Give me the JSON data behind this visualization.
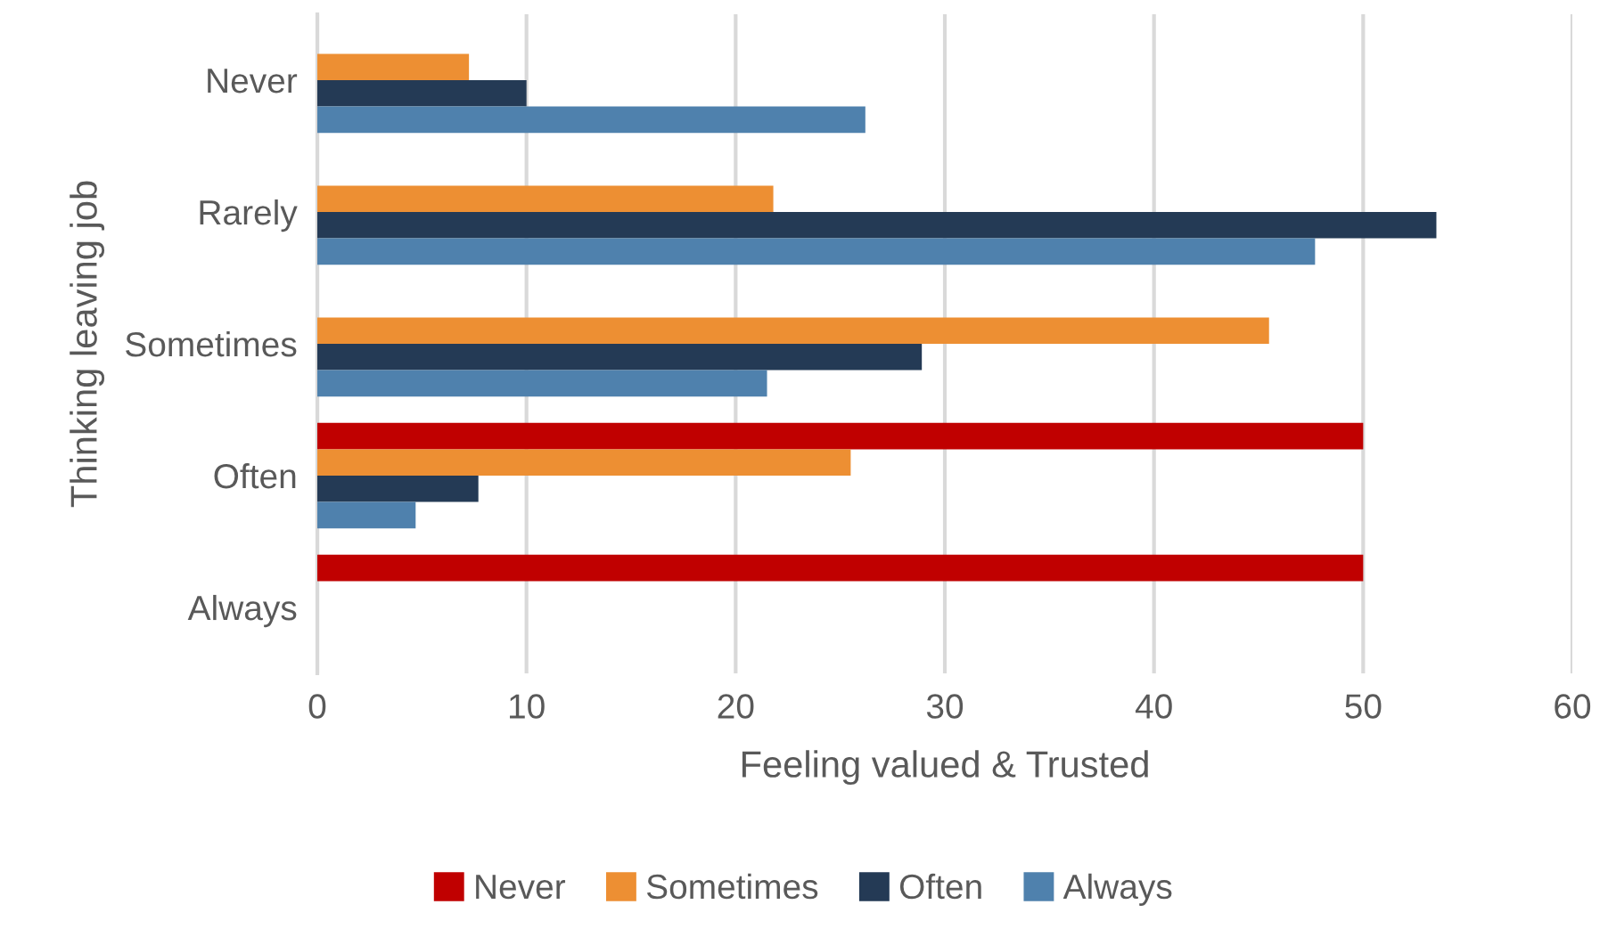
{
  "chart_data": {
    "type": "bar",
    "orientation": "horizontal",
    "xlabel": "Feeling valued & Trusted",
    "ylabel": "Thinking leaving job",
    "categories": [
      "Never",
      "Rarely",
      "Sometimes",
      "Often",
      "Always"
    ],
    "series": [
      {
        "name": "Never",
        "color": "#c00000",
        "values": [
          null,
          null,
          null,
          50,
          50
        ]
      },
      {
        "name": "Sometimes",
        "color": "#ed8f33",
        "values": [
          7.25,
          21.8,
          45.5,
          25.5,
          null
        ]
      },
      {
        "name": "Often",
        "color": "#243a55",
        "values": [
          10,
          53.5,
          28.9,
          7.7,
          null
        ]
      },
      {
        "name": "Always",
        "color": "#4f81ad",
        "values": [
          26.2,
          47.7,
          21.5,
          4.7,
          null
        ]
      }
    ],
    "xlim": [
      0,
      60
    ],
    "xticks": [
      0,
      10,
      20,
      30,
      40,
      50,
      60
    ],
    "grid": "x",
    "legend": "bottom"
  }
}
